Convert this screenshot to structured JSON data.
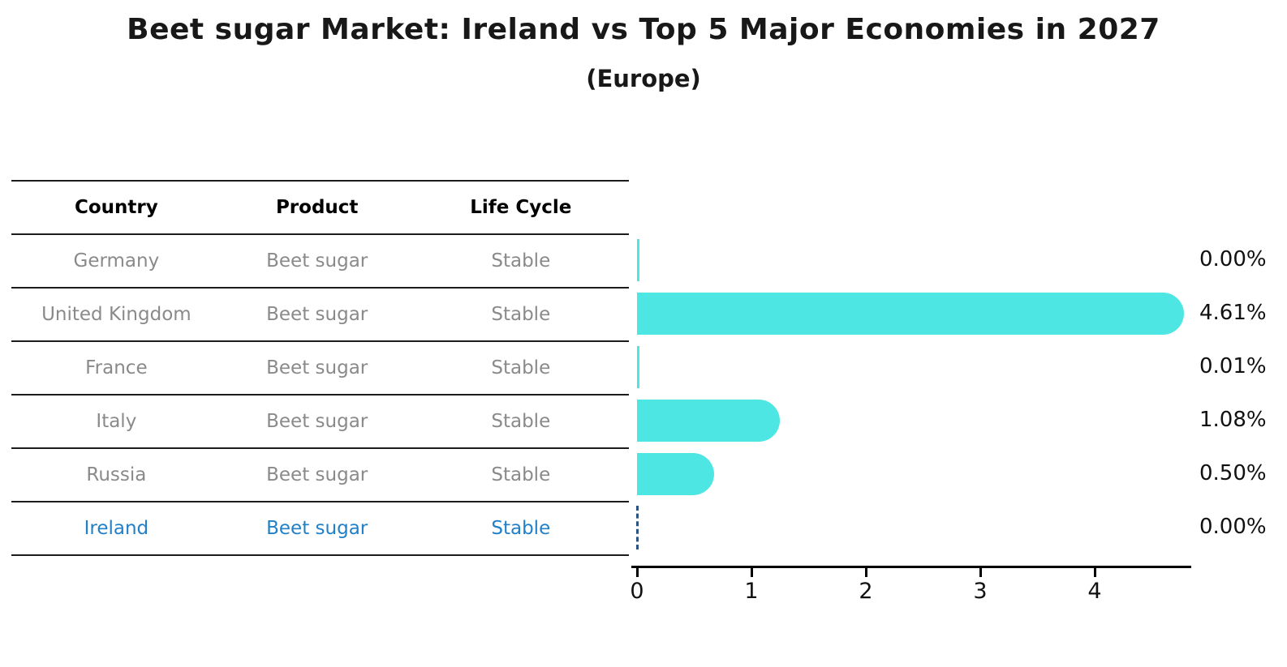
{
  "title": "Beet sugar Market: Ireland vs Top 5 Major Economies in 2027",
  "subtitle": "(Europe)",
  "table": {
    "headers": [
      "Country",
      "Product",
      "Life Cycle"
    ],
    "rows": [
      {
        "country": "Germany",
        "product": "Beet sugar",
        "life_cycle": "Stable",
        "highlighted": false
      },
      {
        "country": "United Kingdom",
        "product": "Beet sugar",
        "life_cycle": "Stable",
        "highlighted": false
      },
      {
        "country": "France",
        "product": "Beet sugar",
        "life_cycle": "Stable",
        "highlighted": false
      },
      {
        "country": "Italy",
        "product": "Beet sugar",
        "life_cycle": "Stable",
        "highlighted": false
      },
      {
        "country": "Russia",
        "product": "Beet sugar",
        "life_cycle": "Stable",
        "highlighted": true
      }
    ]
  },
  "chart_data": {
    "type": "bar",
    "orientation": "horizontal",
    "title": "Beet sugar Market: Ireland vs Top 5 Major Economies in 2027",
    "subtitle": "(Europe)",
    "categories": [
      "Germany",
      "United Kingdom",
      "France",
      "Italy",
      "Russia",
      "Ireland"
    ],
    "values": [
      0.0,
      4.61,
      0.01,
      1.08,
      0.5,
      0.0
    ],
    "value_labels": [
      "0.00%",
      "4.61%",
      "0.01%",
      "1.08%",
      "0.50%",
      "0.00%"
    ],
    "xlabel": "",
    "ylabel": "",
    "xticks": [
      0,
      1,
      2,
      3,
      4
    ],
    "xlim": [
      0,
      4.84
    ],
    "grid": false,
    "legend": false,
    "highlight_country": "Ireland",
    "bar_color": "#4de6e3",
    "highlight_line_color": "#2b5580"
  },
  "colors": {
    "highlight_text": "#2180c8",
    "row_text": "#8a8a8a",
    "header_text": "#000000",
    "title_text": "#181818",
    "axis": "#000000"
  }
}
